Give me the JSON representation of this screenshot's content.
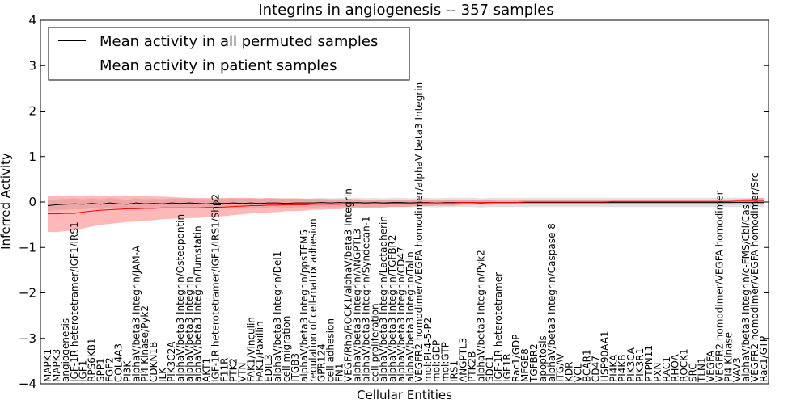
{
  "chart_data": {
    "type": "line",
    "title": "Integrins in angiogenesis -- 357 samples",
    "xlabel": "Cellular Entities",
    "ylabel": "Inferred Activity",
    "ylim": [
      -4,
      4
    ],
    "yticks": [
      -4,
      -3,
      -2,
      -1,
      0,
      1,
      2,
      3,
      4
    ],
    "grid": false,
    "legend_position": "top-left",
    "categories": [
      "MAPK1",
      "MAPK3",
      "angiogenesis",
      "IGF-1R heterotetramer/IGF1/IRS1",
      "IGF1",
      "RPS6KB1",
      "SPP1",
      "FGF2",
      "COL4A3",
      "PI3K",
      "alphaV/beta3 Integrin/JAM-A",
      "PI4 Kinase/Pyk2",
      "CDKN1B",
      "ILK",
      "PIK3C2A",
      "alphaV/beta3 Integrin/Osteopontin",
      "alphaV/beta3 Integrin",
      "alphaV/beta3 Integrin/Tumstatin",
      "AKT1",
      "IGF-1R heterotetramer/IGF1/IRS1/Shp2",
      "F11R",
      "PTK2",
      "VTN",
      "FAK1/Vinculin",
      "FAK1/Paxillin",
      "EDIL3",
      "alphaV/beta3 Integrin/Del1",
      "cell migration",
      "ITGB3",
      "alphaV/beta3 Integrin/ppsTEM5",
      "regulation of cell-matrix adhesion",
      "GPR124",
      "cell adhesion",
      "FN1",
      "VEGF/Rho/ROCK1/alphaV/beta3 Integrin",
      "alphaV/beta3 Integrin/ANGPTL3",
      "alphaV/beta3 Integrin/Syndecan-1",
      "cell proliferation",
      "alphaV/beta3 Integrin/Lactadherin",
      "alphaV/beta3 Integrin/TGFBR2",
      "alphaV/beta3 Integrin/CD47",
      "alphaV/beta3 Integrin/Talin",
      "VEGFR2 homodimer/VEGFA homodimer/alphaV beta3 Integrin",
      "mol:PI-4-5-P2",
      "mol:GDP",
      "mol:GTP",
      "IRS1",
      "ANGPTL3",
      "PTK2B",
      "alphaV/beta3 Integrin/Pyk2",
      "SDC1",
      "IGF-1R heterotetramer",
      "IGF1R",
      "Rac1/GDP",
      "MFGE8",
      "TGFBR2",
      "apoptosis",
      "alphaV/beta3 Integrin/Caspase 8",
      "ITGAV",
      "KDR",
      "VCL",
      "BCAR1",
      "CD47",
      "HSP90AA1",
      "PI4KA",
      "PI4KB",
      "PIK3CA",
      "PIK3R1",
      "PTPN11",
      "PXN",
      "RAC1",
      "RHOA",
      "ROCK1",
      "SRC",
      "TLN1",
      "VEGFA",
      "VEGFR2 homodimer/VEGFA homodimer",
      "PI4 Kinase",
      "VAV3",
      "alphaV/beta3 Integrin/c-FMS/Cbl/Cas",
      "VEGFR2 homodimer/VEGFA homodimer/Src",
      "Rac1/GTP"
    ],
    "series": [
      {
        "name": "Mean activity in all permuted samples",
        "color": "#000000",
        "values": [
          -0.08,
          -0.06,
          -0.05,
          -0.04,
          -0.05,
          -0.03,
          -0.05,
          -0.02,
          -0.04,
          -0.05,
          -0.02,
          -0.04,
          -0.03,
          -0.04,
          -0.02,
          -0.03,
          -0.02,
          -0.03,
          -0.04,
          -0.02,
          -0.03,
          -0.02,
          -0.03,
          -0.02,
          -0.03,
          -0.02,
          -0.02,
          -0.03,
          -0.02,
          -0.02,
          -0.02,
          -0.01,
          -0.02,
          -0.01,
          -0.02,
          -0.01,
          -0.02,
          -0.01,
          -0.02,
          -0.01,
          -0.01,
          -0.02,
          -0.01,
          -0.01,
          -0.02,
          -0.01,
          -0.01,
          -0.01,
          -0.01,
          -0.02,
          -0.01,
          -0.01,
          -0.01,
          -0.01,
          -0.01,
          -0.01,
          -0.01,
          -0.01,
          -0.01,
          -0.01,
          -0.01,
          -0.01,
          -0.01,
          -0.01,
          -0.01,
          -0.01,
          -0.01,
          -0.01,
          -0.01,
          -0.01,
          -0.01,
          -0.01,
          -0.01,
          -0.01,
          -0.01,
          -0.01,
          -0.01,
          -0.01,
          -0.01,
          -0.01,
          -0.01,
          -0.01
        ],
        "band": [
          0.12,
          0.12,
          0.12,
          0.12,
          0.11,
          0.11,
          0.11,
          0.11,
          0.11,
          0.1,
          0.1,
          0.1,
          0.1,
          0.1,
          0.1,
          0.1,
          0.1,
          0.1,
          0.1,
          0.1,
          0.1,
          0.1,
          0.1,
          0.1,
          0.1,
          0.1,
          0.1,
          0.1,
          0.1,
          0.1,
          0.1,
          0.1,
          0.1,
          0.1,
          0.1,
          0.1,
          0.1,
          0.1,
          0.1,
          0.1,
          0.1,
          0.1,
          0.1,
          0.1,
          0.1,
          0.1,
          0.1,
          0.1,
          0.1,
          0.1,
          0.1,
          0.1,
          0.1,
          0.1,
          0.1,
          0.1,
          0.1,
          0.1,
          0.1,
          0.1,
          0.1,
          0.1,
          0.1,
          0.1,
          0.1,
          0.1,
          0.1,
          0.1,
          0.1,
          0.1,
          0.1,
          0.1,
          0.1,
          0.1,
          0.1,
          0.1,
          0.1,
          0.1,
          0.1,
          0.1,
          0.1,
          0.1
        ]
      },
      {
        "name": "Mean activity in patient samples",
        "color": "#ff0000",
        "values": [
          -0.26,
          -0.26,
          -0.25,
          -0.25,
          -0.22,
          -0.2,
          -0.18,
          -0.17,
          -0.16,
          -0.15,
          -0.15,
          -0.14,
          -0.14,
          -0.13,
          -0.13,
          -0.13,
          -0.13,
          -0.13,
          -0.12,
          -0.12,
          -0.11,
          -0.1,
          -0.09,
          -0.08,
          -0.08,
          -0.07,
          -0.07,
          -0.06,
          -0.06,
          -0.06,
          -0.05,
          -0.05,
          -0.05,
          -0.05,
          -0.04,
          -0.04,
          -0.04,
          -0.04,
          -0.04,
          -0.03,
          -0.03,
          -0.03,
          -0.02,
          -0.02,
          -0.02,
          -0.02,
          -0.02,
          -0.01,
          -0.01,
          -0.01,
          -0.01,
          -0.01,
          -0.01,
          -0.01,
          0.0,
          0.0,
          0.0,
          0.0,
          0.0,
          0.0,
          0.0,
          0.0,
          0.0,
          0.0,
          0.01,
          0.01,
          0.01,
          0.01,
          0.01,
          0.01,
          0.01,
          0.01,
          0.01,
          0.01,
          0.01,
          0.01,
          0.01,
          0.01,
          0.02,
          0.02,
          0.02,
          0.02
        ],
        "band": [
          0.4,
          0.4,
          0.39,
          0.38,
          0.36,
          0.34,
          0.32,
          0.31,
          0.3,
          0.29,
          0.28,
          0.27,
          0.26,
          0.25,
          0.24,
          0.23,
          0.22,
          0.22,
          0.21,
          0.2,
          0.2,
          0.19,
          0.18,
          0.17,
          0.16,
          0.16,
          0.15,
          0.14,
          0.14,
          0.13,
          0.12,
          0.12,
          0.11,
          0.11,
          0.1,
          0.1,
          0.09,
          0.09,
          0.08,
          0.08,
          0.08,
          0.07,
          0.07,
          0.07,
          0.06,
          0.06,
          0.06,
          0.05,
          0.05,
          0.05,
          0.05,
          0.04,
          0.04,
          0.04,
          0.04,
          0.04,
          0.04,
          0.04,
          0.04,
          0.04,
          0.04,
          0.04,
          0.04,
          0.04,
          0.04,
          0.04,
          0.04,
          0.04,
          0.04,
          0.04,
          0.04,
          0.04,
          0.04,
          0.04,
          0.04,
          0.04,
          0.04,
          0.04,
          0.04,
          0.05,
          0.06,
          0.07
        ]
      }
    ]
  }
}
